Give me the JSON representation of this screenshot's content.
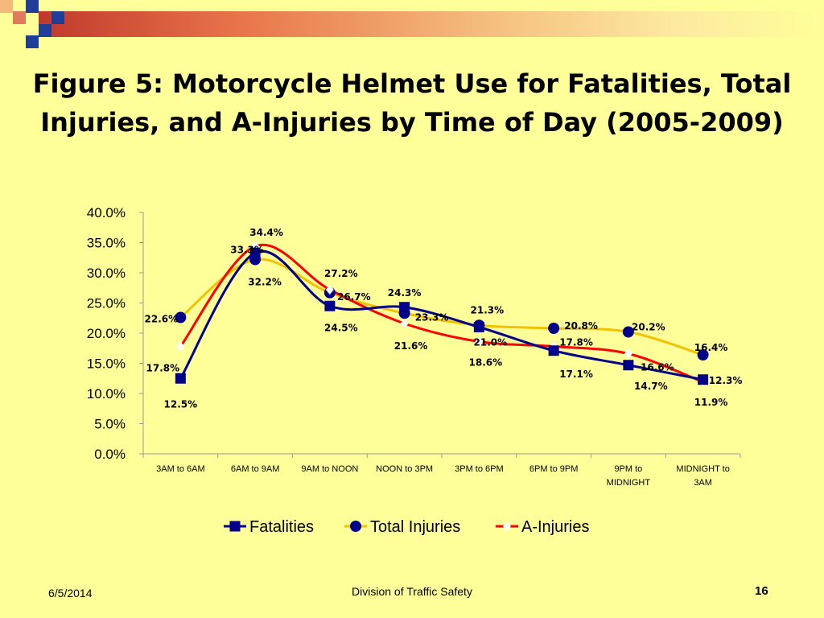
{
  "slide": {
    "title_line1": "Figure 5: Motorcycle Helmet Use for Fatalities, Total",
    "title_line2": "Injuries, and A-Injuries by Time of Day (2005-2009)",
    "date": "6/5/2014",
    "footer_center": "Division of Traffic Safety",
    "page_number": "16",
    "colors": {
      "background": "#ffff99",
      "accent_red": "#c0392b",
      "accent_blue": "#1f3d99",
      "deco_orange": "#e07a5f"
    }
  },
  "chart_data": {
    "type": "line",
    "categories": [
      [
        "3AM to 6AM"
      ],
      [
        "6AM to 9AM"
      ],
      [
        "9AM to NOON"
      ],
      [
        "NOON to 3PM"
      ],
      [
        "3PM to 6PM"
      ],
      [
        "6PM to 9PM"
      ],
      [
        "9PM to",
        "MIDNIGHT"
      ],
      [
        "MIDNIGHT to",
        "3AM"
      ]
    ],
    "ylim": [
      0,
      40
    ],
    "yticks": [
      0,
      5,
      10,
      15,
      20,
      25,
      30,
      35,
      40
    ],
    "ytick_labels": [
      "0.0%",
      "5.0%",
      "10.0%",
      "15.0%",
      "20.0%",
      "25.0%",
      "30.0%",
      "35.0%",
      "40.0%"
    ],
    "grid": false,
    "legend_position": "bottom",
    "series": [
      {
        "name": "Fatalities",
        "color": "#00008b",
        "marker": "square",
        "values": [
          12.5,
          33.3,
          24.5,
          24.3,
          21.0,
          17.1,
          14.7,
          12.3
        ],
        "labels": [
          "12.5%",
          "33.3%",
          "24.5%",
          "24.3%",
          "21.0%",
          "17.1%",
          "14.7%",
          "12.3%"
        ]
      },
      {
        "name": "Total Injuries",
        "color": "#f2c200",
        "marker_color": "#00008b",
        "marker": "circle",
        "values": [
          22.6,
          32.2,
          26.7,
          23.3,
          21.3,
          20.8,
          20.2,
          16.4
        ],
        "labels": [
          "22.6%",
          "32.2%",
          "26.7%",
          "23.3%",
          "21.3%",
          "20.8%",
          "20.2%",
          "16.4%"
        ]
      },
      {
        "name": "A-Injuries",
        "color": "#ff0000",
        "marker_color": "#ffffff",
        "marker": "diamond",
        "values": [
          17.8,
          34.4,
          27.2,
          21.6,
          18.6,
          17.8,
          16.6,
          11.9
        ],
        "labels": [
          "17.8%",
          "34.4%",
          "27.2%",
          "21.6%",
          "18.6%",
          "17.8%",
          "16.6%",
          "11.9%"
        ]
      }
    ]
  }
}
